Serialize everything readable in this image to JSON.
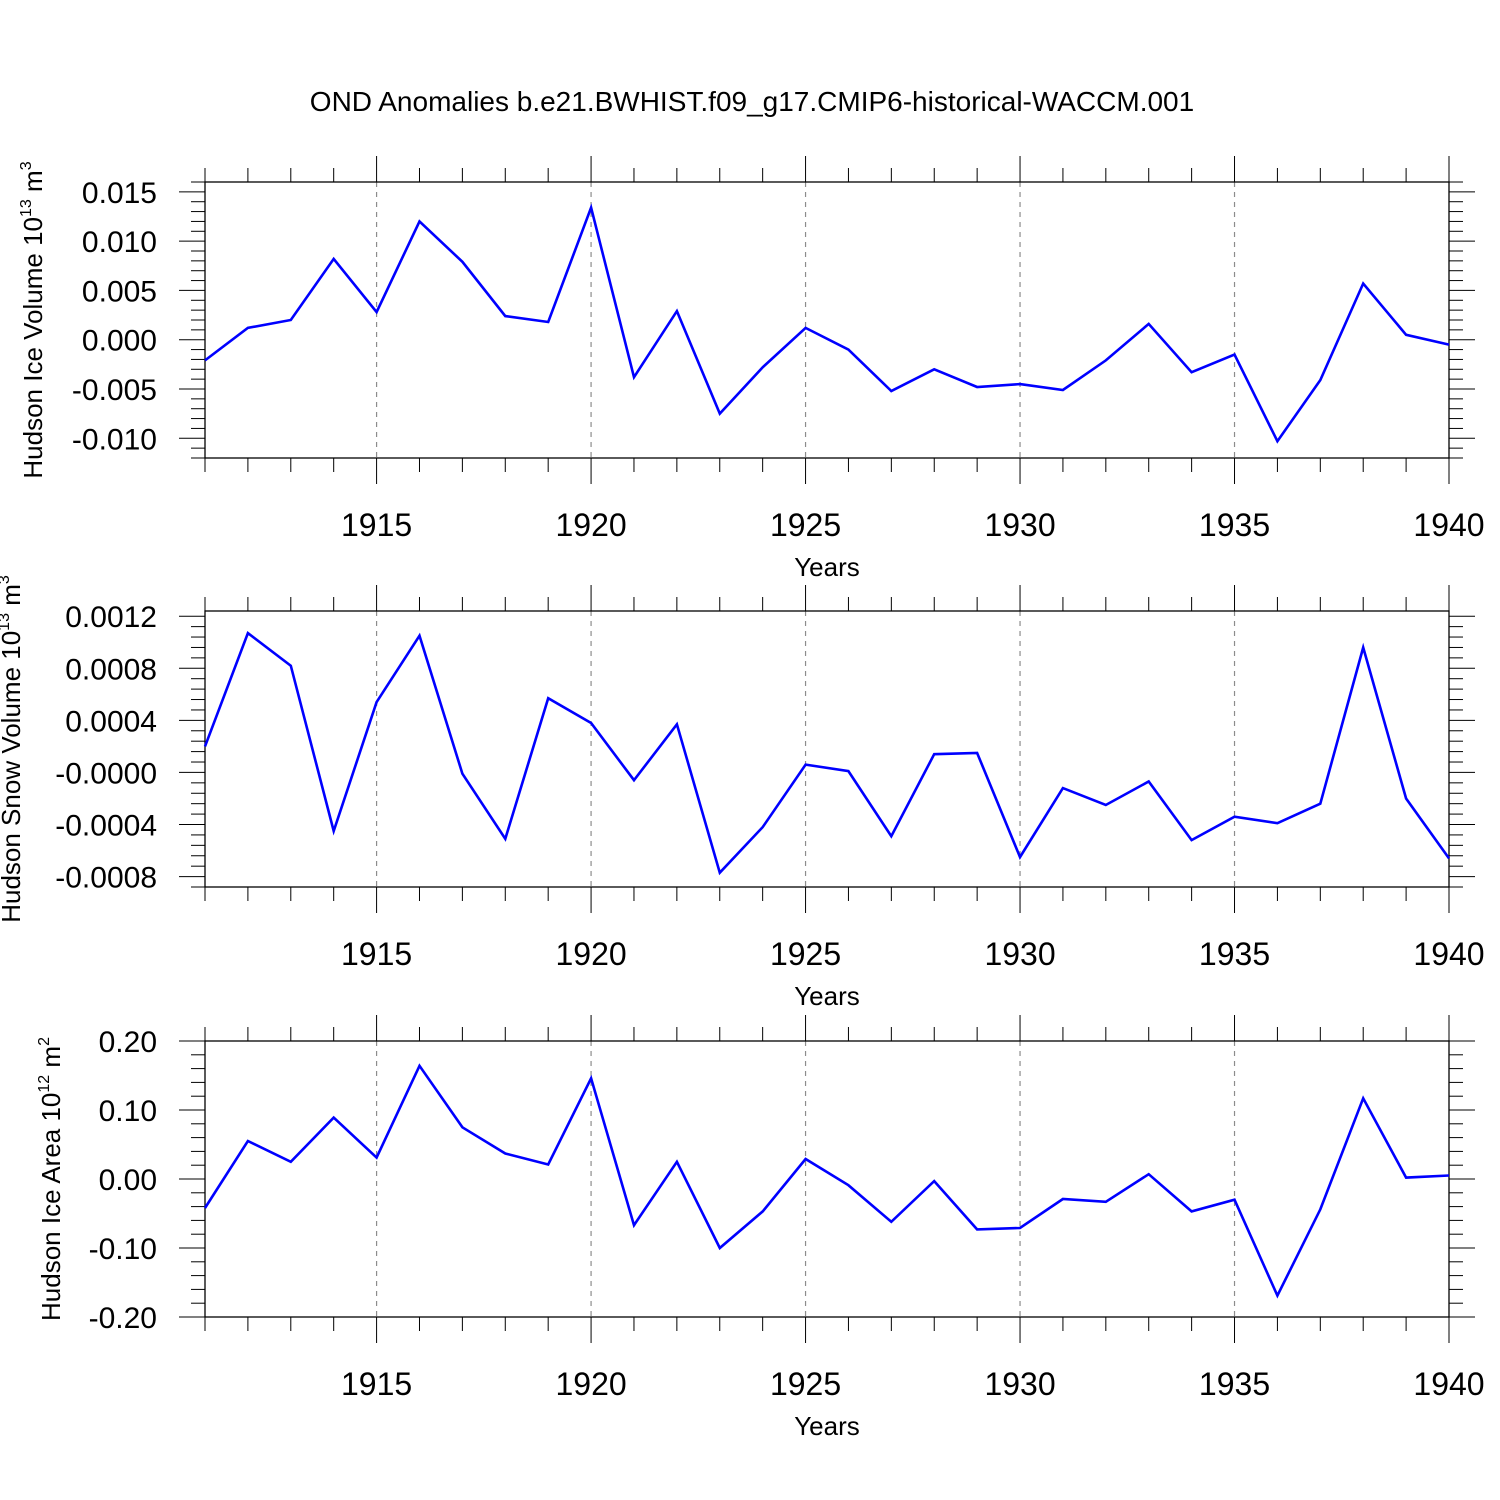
{
  "figure_title": "OND Anomalies b.e21.BWHIST.f09_g17.CMIP6-historical-WACCM.001",
  "line_color": "#0000ff",
  "chart_data": [
    {
      "type": "line",
      "title": "",
      "ylabel_base": "Hudson Ice Volume 10",
      "ylabel_exp": "13",
      "ylabel_unit": " m",
      "ylabel_unit_exp": "3",
      "xlabel": "Years",
      "xlim": [
        1911,
        1940
      ],
      "ylim": [
        -0.012,
        0.016
      ],
      "yticks": [
        0.015,
        0.01,
        0.005,
        0.0,
        -0.005,
        -0.01
      ],
      "ytick_labels": [
        "0.015",
        "0.010",
        "0.005",
        "0.000",
        "-0.005",
        "-0.010"
      ],
      "xticks": [
        1915,
        1920,
        1925,
        1930,
        1935,
        1940
      ],
      "xtick_labels": [
        "1915",
        "1920",
        "1925",
        "1930",
        "1935",
        "1940"
      ],
      "grid": "dashed vertical at major x ticks",
      "x": [
        1911,
        1912,
        1913,
        1914,
        1915,
        1916,
        1917,
        1918,
        1919,
        1920,
        1921,
        1922,
        1923,
        1924,
        1925,
        1926,
        1927,
        1928,
        1929,
        1930,
        1931,
        1932,
        1933,
        1934,
        1935,
        1936,
        1937,
        1938,
        1939,
        1940
      ],
      "series": [
        {
          "values": [
            -0.0021,
            0.0012,
            0.002,
            0.0082,
            0.0028,
            0.012,
            0.0079,
            0.0024,
            0.0018,
            0.0134,
            -0.0038,
            0.0029,
            -0.0075,
            -0.0028,
            0.0012,
            -0.001,
            -0.0052,
            -0.003,
            -0.0048,
            -0.0045,
            -0.0051,
            -0.0021,
            0.0016,
            -0.0033,
            -0.0015,
            -0.0103,
            -0.0041,
            0.0057,
            0.0005,
            -0.0005
          ]
        }
      ]
    },
    {
      "type": "line",
      "title": "",
      "ylabel_base": "Hudson Snow Volume 10",
      "ylabel_exp": "13",
      "ylabel_unit": " m",
      "ylabel_unit_exp": "3",
      "xlabel": "Years",
      "xlim": [
        1911,
        1940
      ],
      "ylim": [
        -0.00088,
        0.00124
      ],
      "yticks": [
        0.0012,
        0.0008,
        0.0004,
        0.0,
        -0.0004,
        -0.0008
      ],
      "ytick_labels": [
        "0.0012",
        "0.0008",
        "0.0004",
        "-0.0000",
        "-0.0004",
        "-0.0008"
      ],
      "xticks": [
        1915,
        1920,
        1925,
        1930,
        1935,
        1940
      ],
      "xtick_labels": [
        "1915",
        "1920",
        "1925",
        "1930",
        "1935",
        "1940"
      ],
      "grid": "dashed vertical at major x ticks",
      "x": [
        1911,
        1912,
        1913,
        1914,
        1915,
        1916,
        1917,
        1918,
        1919,
        1920,
        1921,
        1922,
        1923,
        1924,
        1925,
        1926,
        1927,
        1928,
        1929,
        1930,
        1931,
        1932,
        1933,
        1934,
        1935,
        1936,
        1937,
        1938,
        1939,
        1940
      ],
      "series": [
        {
          "values": [
            0.0002,
            0.00107,
            0.00082,
            -0.00045,
            0.00054,
            0.00105,
            -1e-05,
            -0.00051,
            0.00057,
            0.00038,
            -6e-05,
            0.00037,
            -0.00077,
            -0.00042,
            6e-05,
            1e-05,
            -0.00049,
            0.00014,
            0.00015,
            -0.00065,
            -0.00012,
            -0.00025,
            -7e-05,
            -0.00052,
            -0.00034,
            -0.00039,
            -0.00024,
            0.00096,
            -0.0002,
            -0.00066
          ]
        }
      ]
    },
    {
      "type": "line",
      "title": "",
      "ylabel_base": "Hudson Ice Area 10",
      "ylabel_exp": "12",
      "ylabel_unit": " m",
      "ylabel_unit_exp": "2",
      "xlabel": "Years",
      "xlim": [
        1911,
        1940
      ],
      "ylim": [
        -0.2,
        0.2
      ],
      "yticks": [
        0.2,
        0.1,
        0.0,
        -0.1,
        -0.2
      ],
      "ytick_labels": [
        "0.20",
        "0.10",
        "0.00",
        "-0.10",
        "-0.20"
      ],
      "xticks": [
        1915,
        1920,
        1925,
        1930,
        1935,
        1940
      ],
      "xtick_labels": [
        "1915",
        "1920",
        "1925",
        "1930",
        "1935",
        "1940"
      ],
      "grid": "dashed vertical at major x ticks",
      "x": [
        1911,
        1912,
        1913,
        1914,
        1915,
        1916,
        1917,
        1918,
        1919,
        1920,
        1921,
        1922,
        1923,
        1924,
        1925,
        1926,
        1927,
        1928,
        1929,
        1930,
        1931,
        1932,
        1933,
        1934,
        1935,
        1936,
        1937,
        1938,
        1939,
        1940
      ],
      "series": [
        {
          "values": [
            -0.042,
            0.055,
            0.025,
            0.089,
            0.031,
            0.164,
            0.075,
            0.037,
            0.021,
            0.146,
            -0.067,
            0.025,
            -0.1,
            -0.047,
            0.029,
            -0.009,
            -0.062,
            -0.003,
            -0.073,
            -0.071,
            -0.029,
            -0.033,
            0.007,
            -0.047,
            -0.03,
            -0.169,
            -0.044,
            0.117,
            0.002,
            0.005
          ]
        }
      ]
    }
  ]
}
